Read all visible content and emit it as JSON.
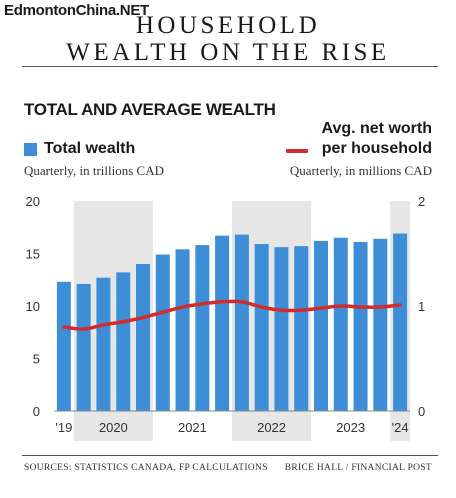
{
  "watermark": "EdmontonChina.NET",
  "headline": {
    "line1": "HOUSEHOLD",
    "line2": "WEALTH ON THE RISE"
  },
  "footer": {
    "sources": "SOURCES: STATISTICS CANADA, FP CALCULATIONS",
    "credit": "BRICE HALL / FINANCIAL POST"
  },
  "chart_data": {
    "type": "bar",
    "title": "TOTAL AND AVERAGE WEALTH",
    "x_tick_labels": [
      "'19",
      "2020",
      "2021",
      "2022",
      "2023",
      "'24"
    ],
    "quarters": [
      "2019 Q4",
      "2020 Q1",
      "2020 Q2",
      "2020 Q3",
      "2020 Q4",
      "2021 Q1",
      "2021 Q2",
      "2021 Q3",
      "2021 Q4",
      "2022 Q1",
      "2022 Q2",
      "2022 Q3",
      "2022 Q4",
      "2023 Q1",
      "2023 Q2",
      "2023 Q3",
      "2023 Q4",
      "2024 Q1"
    ],
    "shaded_years": [
      "2020",
      "2022",
      "2024"
    ],
    "series": [
      {
        "name": "Total wealth",
        "unit": "Quarterly, in trillions CAD",
        "kind": "bar",
        "axis": "left",
        "color": "#3d8ed6",
        "values": [
          12.3,
          12.1,
          12.7,
          13.2,
          14.0,
          14.9,
          15.4,
          15.8,
          16.7,
          16.8,
          15.9,
          15.6,
          15.7,
          16.2,
          16.5,
          16.1,
          16.4,
          16.9
        ]
      },
      {
        "name_line1": "Avg. net worth",
        "name_line2": "per household",
        "unit": "Quarterly, in millions CAD",
        "kind": "line",
        "axis": "right",
        "color": "#d32b2b",
        "values": [
          0.8,
          0.78,
          0.82,
          0.85,
          0.89,
          0.94,
          0.99,
          1.02,
          1.04,
          1.04,
          0.99,
          0.96,
          0.96,
          0.98,
          1.0,
          0.99,
          0.99,
          1.01
        ]
      }
    ],
    "y_left": {
      "ticks": [
        "0",
        "5",
        "10",
        "15",
        "20"
      ],
      "min": 0,
      "max": 20
    },
    "y_right": {
      "ticks": [
        "0",
        "1",
        "2"
      ],
      "min": 0,
      "max": 2
    },
    "grid": false
  }
}
